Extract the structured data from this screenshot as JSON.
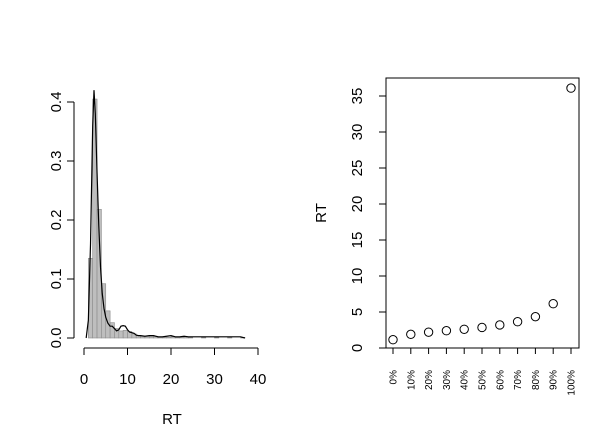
{
  "chart_data": [
    {
      "type": "histogram",
      "xlabel": "RT",
      "ylabel": "",
      "xlim": [
        0,
        40
      ],
      "ylim": [
        0,
        0.42
      ],
      "x_ticks": [
        "0",
        "10",
        "20",
        "30",
        "40"
      ],
      "y_ticks": [
        "0.0",
        "0.1",
        "0.2",
        "0.3",
        "0.4"
      ],
      "bars": [
        {
          "x0": 1,
          "x1": 2,
          "density": 0.135
        },
        {
          "x0": 2,
          "x1": 3,
          "density": 0.405
        },
        {
          "x0": 3,
          "x1": 4,
          "density": 0.218
        },
        {
          "x0": 4,
          "x1": 5,
          "density": 0.092
        },
        {
          "x0": 5,
          "x1": 6,
          "density": 0.046
        },
        {
          "x0": 6,
          "x1": 7,
          "density": 0.026
        },
        {
          "x0": 7,
          "x1": 8,
          "density": 0.016
        },
        {
          "x0": 8,
          "x1": 9,
          "density": 0.012
        },
        {
          "x0": 9,
          "x1": 10,
          "density": 0.013
        },
        {
          "x0": 10,
          "x1": 11,
          "density": 0.011
        },
        {
          "x0": 11,
          "x1": 12,
          "density": 0.007
        },
        {
          "x0": 12,
          "x1": 13,
          "density": 0.004
        },
        {
          "x0": 13,
          "x1": 14,
          "density": 0.003
        },
        {
          "x0": 14,
          "x1": 15,
          "density": 0.003
        },
        {
          "x0": 15,
          "x1": 16,
          "density": 0.002
        },
        {
          "x0": 16,
          "x1": 17,
          "density": 0.003
        },
        {
          "x0": 17,
          "x1": 18,
          "density": 0.001
        },
        {
          "x0": 18,
          "x1": 19,
          "density": 0.001
        },
        {
          "x0": 19,
          "x1": 20,
          "density": 0.001
        },
        {
          "x0": 20,
          "x1": 21,
          "density": 0.002
        },
        {
          "x0": 21,
          "x1": 22,
          "density": 0.001
        },
        {
          "x0": 22,
          "x1": 23,
          "density": 0.001
        },
        {
          "x0": 23,
          "x1": 24,
          "density": 0.002
        },
        {
          "x0": 24,
          "x1": 25,
          "density": 0.001
        },
        {
          "x0": 27,
          "x1": 28,
          "density": 0.001
        },
        {
          "x0": 30,
          "x1": 31,
          "density": 0.001
        },
        {
          "x0": 33,
          "x1": 34,
          "density": 0.001
        },
        {
          "x0": 36,
          "x1": 37,
          "density": 0.001
        }
      ],
      "density_curve": {
        "x": [
          0.5,
          1.0,
          1.5,
          2.0,
          2.3,
          2.6,
          3.0,
          3.4,
          3.8,
          4.2,
          4.6,
          5.0,
          5.5,
          6.0,
          6.5,
          7.0,
          7.5,
          8.0,
          8.5,
          9.0,
          9.5,
          10.0,
          10.5,
          11.0,
          11.5,
          12.0,
          12.5,
          13.0,
          14.0,
          15.0,
          16.0,
          17.0,
          18.0,
          19.0,
          20.0,
          21.0,
          22.0,
          23.0,
          24.0,
          26.0,
          28.0,
          30.0,
          32.0,
          34.0,
          36.0,
          37.0
        ],
        "y": [
          0.0,
          0.03,
          0.16,
          0.36,
          0.42,
          0.38,
          0.28,
          0.19,
          0.12,
          0.075,
          0.05,
          0.035,
          0.025,
          0.02,
          0.02,
          0.016,
          0.012,
          0.014,
          0.02,
          0.021,
          0.02,
          0.014,
          0.01,
          0.009,
          0.008,
          0.005,
          0.004,
          0.004,
          0.003,
          0.004,
          0.004,
          0.002,
          0.002,
          0.003,
          0.004,
          0.002,
          0.002,
          0.003,
          0.002,
          0.002,
          0.002,
          0.002,
          0.002,
          0.002,
          0.002,
          0.0
        ]
      }
    },
    {
      "type": "scatter",
      "xlabel": "",
      "ylabel": "RT",
      "ylim": [
        0,
        36
      ],
      "y_ticks": [
        "0",
        "5",
        "10",
        "15",
        "20",
        "25",
        "30",
        "35"
      ],
      "categories": [
        "0%",
        "10%",
        "20%",
        "30%",
        "40%",
        "50%",
        "60%",
        "70%",
        "80%",
        "90%",
        "100%"
      ],
      "values": [
        1.15,
        1.9,
        2.2,
        2.4,
        2.6,
        2.85,
        3.2,
        3.65,
        4.35,
        6.15,
        36.1
      ],
      "frame": true
    }
  ]
}
